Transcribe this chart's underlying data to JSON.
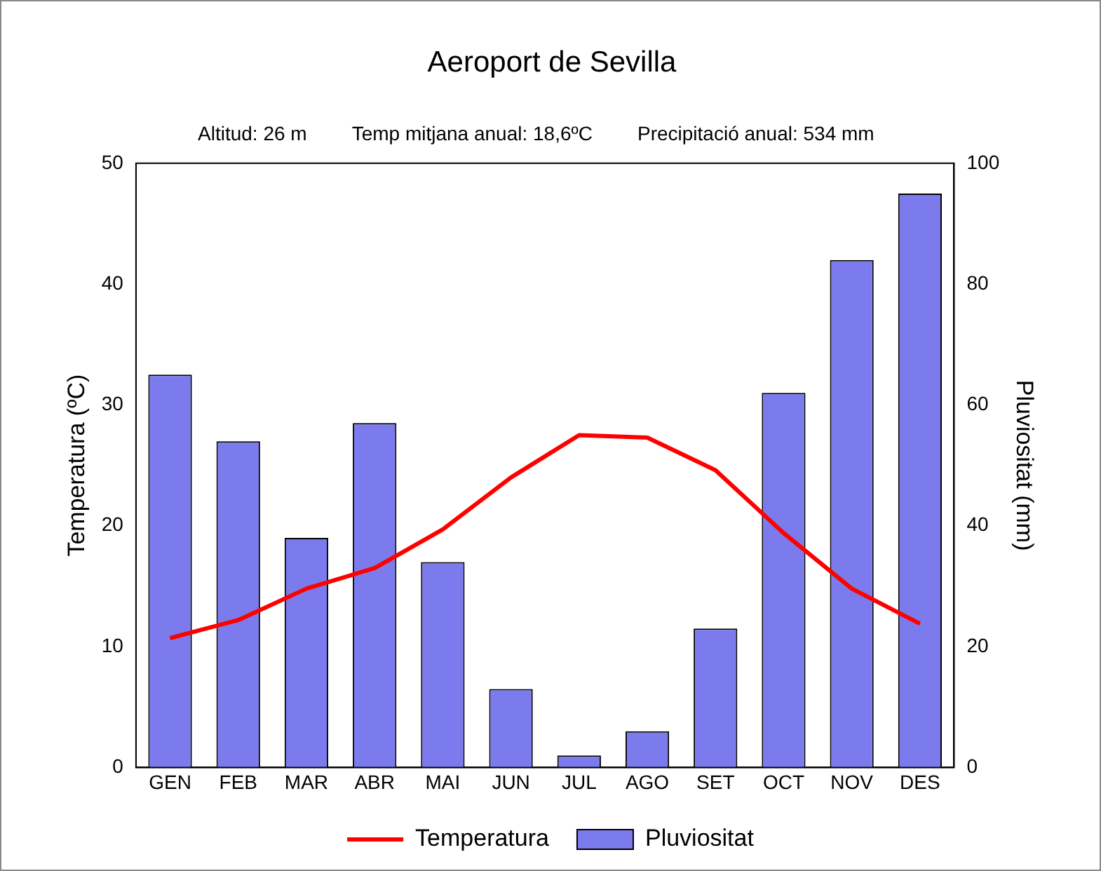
{
  "chart_data": {
    "type": "bar",
    "title": "Aeroport de Sevilla",
    "annotations": [
      "Altitud: 26 m",
      "Temp mitjana anual: 18,6ºC",
      "Precipitació anual: 534 mm"
    ],
    "categories": [
      "GEN",
      "FEB",
      "MAR",
      "ABR",
      "MAI",
      "JUN",
      "JUL",
      "AGO",
      "SET",
      "OCT",
      "NOV",
      "DES"
    ],
    "series": [
      {
        "name": "Temperatura",
        "type": "line",
        "color": "#ff0000",
        "values": [
          10.7,
          12.2,
          14.8,
          16.5,
          19.7,
          24.0,
          27.5,
          27.3,
          24.6,
          19.4,
          14.8,
          11.9
        ]
      },
      {
        "name": "Pluviositat",
        "axis": "y2",
        "color": "#7b7bee",
        "values": [
          65,
          54,
          38,
          57,
          34,
          13,
          2,
          6,
          23,
          62,
          84,
          95
        ]
      }
    ],
    "ylabel": "Temperatura (ºC)",
    "y2label": "Pluviositat (mm)",
    "ylim": [
      0,
      50
    ],
    "yticks": [
      0,
      10,
      20,
      30,
      40,
      50
    ],
    "y2lim": [
      0,
      100
    ],
    "y2ticks": [
      0,
      20,
      40,
      60,
      80,
      100
    ],
    "grid": false,
    "legend": "bottom",
    "marker": "none",
    "line_style": "solid"
  }
}
